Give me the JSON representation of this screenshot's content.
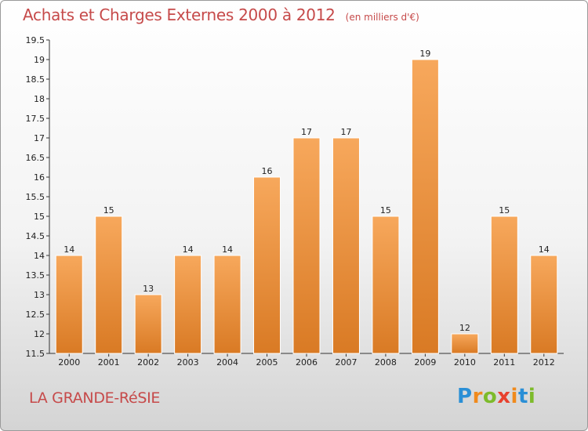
{
  "header": {
    "title": "Achats et Charges Externes 2000 à 2012",
    "unit": "(en milliers d'€)"
  },
  "footer": {
    "place": "LA GRANDE-RéSIE",
    "logo_text": [
      "P",
      "r",
      "o",
      "x",
      "i",
      "t",
      "i"
    ],
    "logo_colors": [
      "#2a8fd6",
      "#f08a1c",
      "#7dbb2b",
      "#e8412e",
      "#f08a1c",
      "#2a8fd6",
      "#7dbb2b"
    ]
  },
  "colors": {
    "bar_top": "#f7a85c",
    "bar_bottom": "#d97a24",
    "title": "#c64a4a"
  },
  "chart_data": {
    "type": "bar",
    "title": "Achats et Charges Externes 2000 à 2012",
    "subtitle": "(en milliers d'€)",
    "xlabel": "",
    "ylabel": "",
    "categories": [
      "2000",
      "2001",
      "2002",
      "2003",
      "2004",
      "2005",
      "2006",
      "2007",
      "2008",
      "2009",
      "2010",
      "2011",
      "2012"
    ],
    "values": [
      14,
      15,
      13,
      14,
      14,
      16,
      17,
      17,
      15,
      19,
      12,
      15,
      14
    ],
    "ylim": [
      11.5,
      19.5
    ],
    "yticks": [
      "11.5",
      "12",
      "12.5",
      "13",
      "13.5",
      "14",
      "14.5",
      "15",
      "15.5",
      "16",
      "16.5",
      "17",
      "17.5",
      "18",
      "18.5",
      "19",
      "19.5"
    ],
    "grid": false,
    "legend": "none"
  }
}
